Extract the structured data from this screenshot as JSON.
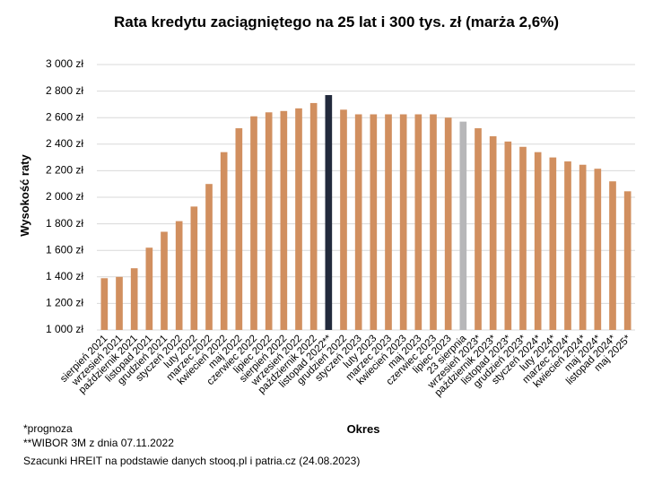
{
  "chart_data": {
    "type": "bar",
    "title": "Rata kredytu zaciągniętego na 25 lat i 300 tys. zł (marża 2,6%)",
    "y_label": "Wysokość raty",
    "x_label": "Okres",
    "categories": [
      "sierpień 2021",
      "wrzesień 2021",
      "październik 2021",
      "listopad 2021",
      "grudzień 2021",
      "styczeń 2022",
      "luty 2022",
      "marzec 2022",
      "kwiecień 2022",
      "maj 2022",
      "czerwiec 2022",
      "lipiec 2022",
      "sierpień 2022",
      "wrzesień 2022",
      "październik 2022",
      "listopad 2022**",
      "grudzień 2022",
      "styczeń 2023",
      "luty 2023",
      "marzec 2023",
      "kwiecień 2023",
      "maj 2023",
      "czerwiec 2023",
      "lipiec 2023",
      "23 sierpnia",
      "wrzesień 2023*",
      "październik 2023*",
      "listopad 2023*",
      "grudzień 2023*",
      "styczeń 2024*",
      "luty 2024*",
      "marzec 2024*",
      "kwiecień 2024*",
      "maj 2024*",
      "listopad 2024*",
      "maj 2025*"
    ],
    "values": [
      1390,
      1400,
      1465,
      1620,
      1740,
      1820,
      1930,
      2100,
      2340,
      2520,
      2610,
      2640,
      2650,
      2670,
      2710,
      2770,
      2660,
      2625,
      2625,
      2625,
      2625,
      2625,
      2625,
      2600,
      2570,
      2520,
      2460,
      2420,
      2380,
      2340,
      2300,
      2270,
      2245,
      2215,
      2120,
      2045
    ],
    "colors": [
      "#d18f5f",
      "#d18f5f",
      "#d18f5f",
      "#d18f5f",
      "#d18f5f",
      "#d18f5f",
      "#d18f5f",
      "#d18f5f",
      "#d18f5f",
      "#d18f5f",
      "#d18f5f",
      "#d18f5f",
      "#d18f5f",
      "#d18f5f",
      "#d18f5f",
      "#222a3c",
      "#d18f5f",
      "#d18f5f",
      "#d18f5f",
      "#d18f5f",
      "#d18f5f",
      "#d18f5f",
      "#d18f5f",
      "#d18f5f",
      "#b7b7b9",
      "#d18f5f",
      "#d18f5f",
      "#d18f5f",
      "#d18f5f",
      "#d18f5f",
      "#d18f5f",
      "#d18f5f",
      "#d18f5f",
      "#d18f5f",
      "#d18f5f",
      "#d18f5f"
    ],
    "ylim": [
      1000,
      3000
    ],
    "yticks": [
      {
        "value": 1000,
        "label": "1 000 zł"
      },
      {
        "value": 1200,
        "label": "1 200 zł"
      },
      {
        "value": 1400,
        "label": "1 400 zł"
      },
      {
        "value": 1600,
        "label": "1 600 zł"
      },
      {
        "value": 1800,
        "label": "1 800 zł"
      },
      {
        "value": 2000,
        "label": "2 000 zł"
      },
      {
        "value": 2200,
        "label": "2 200 zł"
      },
      {
        "value": 2400,
        "label": "2 400 zł"
      },
      {
        "value": 2600,
        "label": "2 600 zł"
      },
      {
        "value": 2800,
        "label": "2 800 zł"
      },
      {
        "value": 3000,
        "label": "3 000 zł"
      }
    ],
    "grid": true,
    "notes": [
      "*prognoza",
      "**WIBOR 3M z dnia 07.11.2022",
      "Szacunki HREIT na podstawie danych stooq.pl i patria.cz (24.08.2023)"
    ]
  }
}
